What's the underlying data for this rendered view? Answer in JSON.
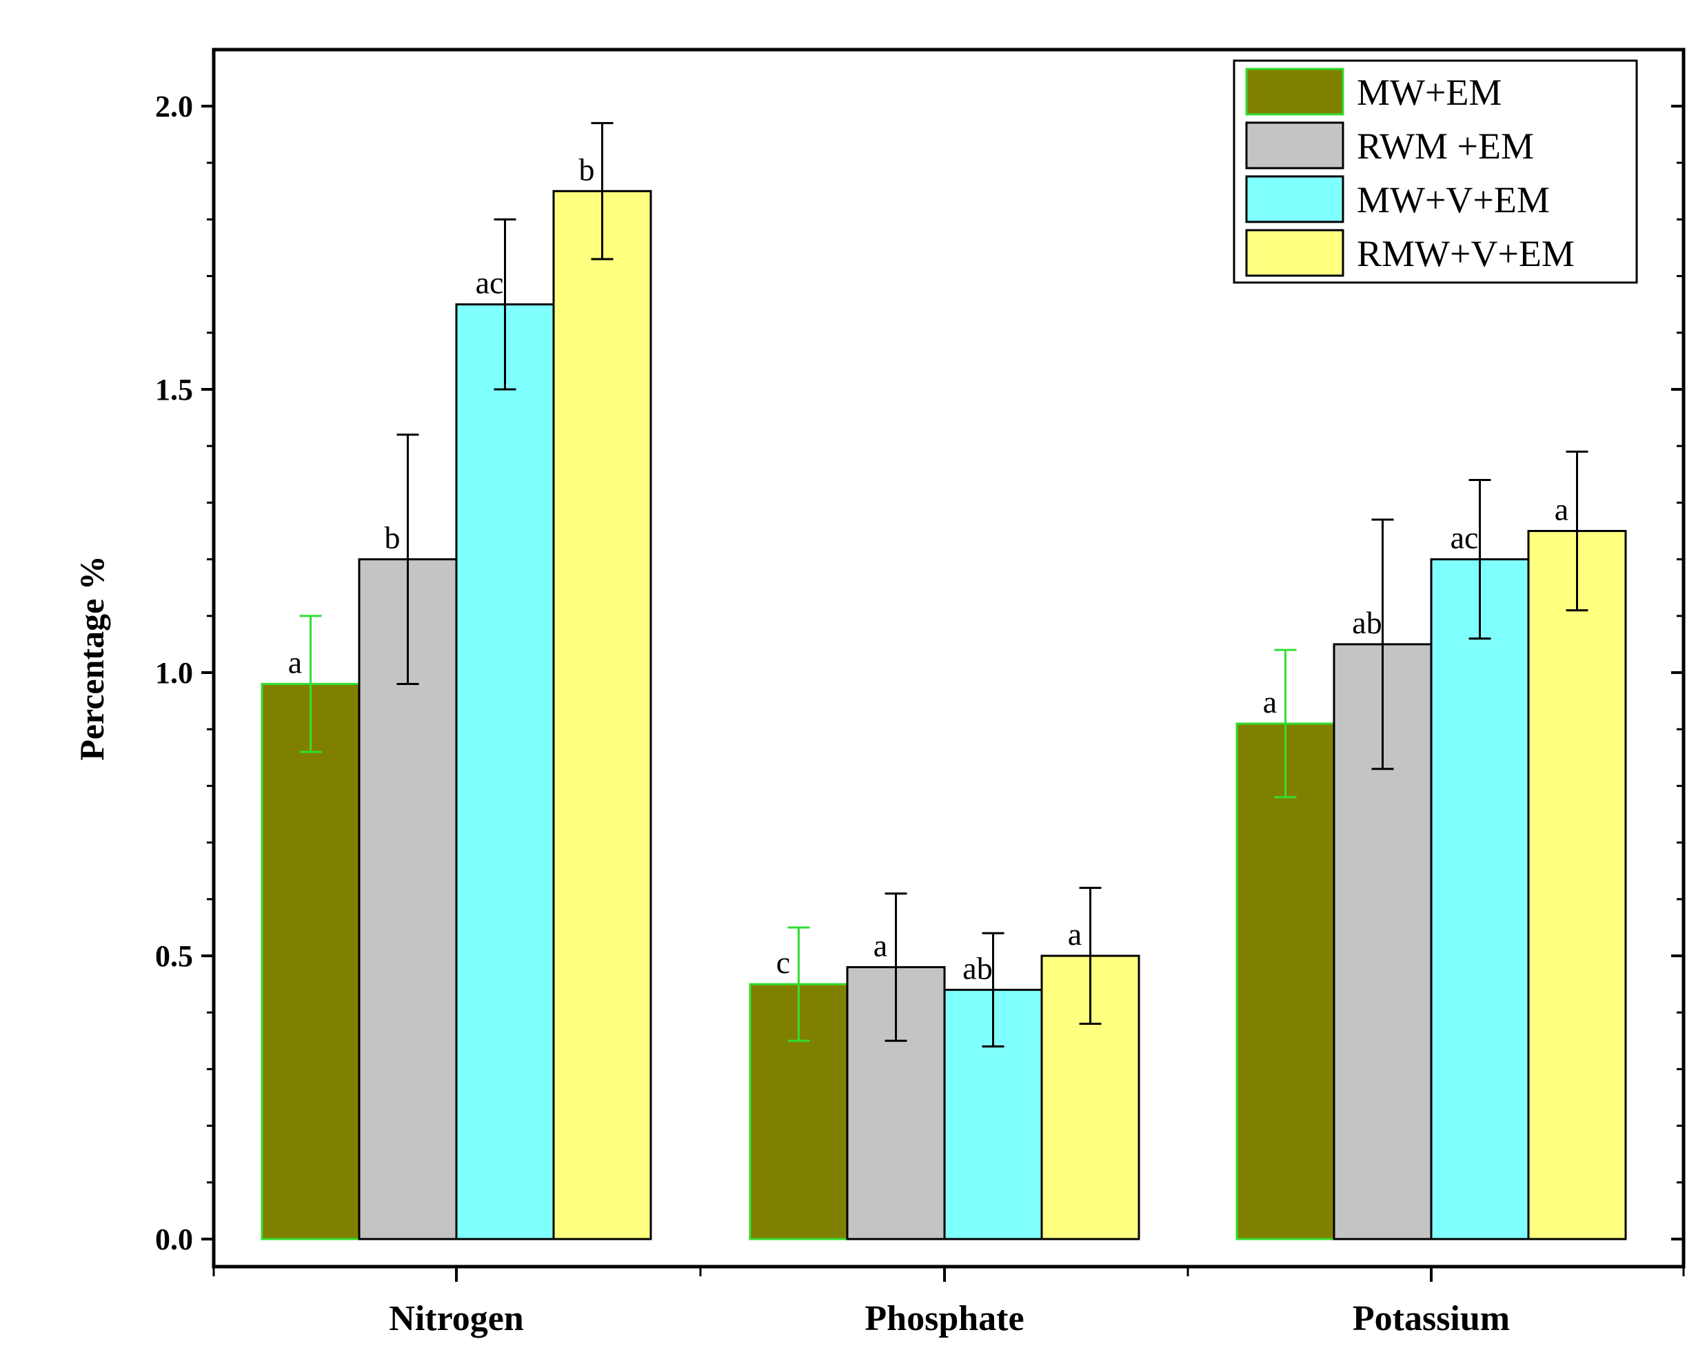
{
  "chart_data": {
    "type": "bar",
    "title": "",
    "xlabel": "",
    "ylabel": "Percentage %",
    "ylim": [
      0,
      2.1
    ],
    "yticks": [
      "0.0",
      "0.5",
      "1.0",
      "1.5",
      "2.0"
    ],
    "categories": [
      "Nitrogen",
      "Phosphate",
      "Potassium"
    ],
    "legend_position": "top-right",
    "series": [
      {
        "name": "MW+EM",
        "color": "#808000",
        "edge": "#33dd33",
        "error_color": "#33dd33",
        "values": [
          0.98,
          0.45,
          0.91
        ],
        "errors": [
          0.12,
          0.1,
          0.13
        ],
        "labels": [
          "a",
          "c",
          "a"
        ]
      },
      {
        "name": "RWM +EM",
        "color": "#c4c4c4",
        "edge": "#000000",
        "error_color": "#000000",
        "values": [
          1.2,
          0.48,
          1.05
        ],
        "errors": [
          0.22,
          0.13,
          0.22
        ],
        "labels": [
          "b",
          "a",
          "ab"
        ]
      },
      {
        "name": "MW+V+EM",
        "color": "#80ffff",
        "edge": "#000000",
        "error_color": "#000000",
        "values": [
          1.65,
          0.44,
          1.2
        ],
        "errors": [
          0.15,
          0.1,
          0.14
        ],
        "labels": [
          "ac",
          "ab",
          "ac"
        ]
      },
      {
        "name": "RMW+V+EM",
        "color": "#ffff80",
        "edge": "#000000",
        "error_color": "#000000",
        "values": [
          1.85,
          0.5,
          1.25
        ],
        "errors": [
          0.12,
          0.12,
          0.14
        ],
        "labels": [
          "b",
          "a",
          "a"
        ]
      }
    ]
  }
}
